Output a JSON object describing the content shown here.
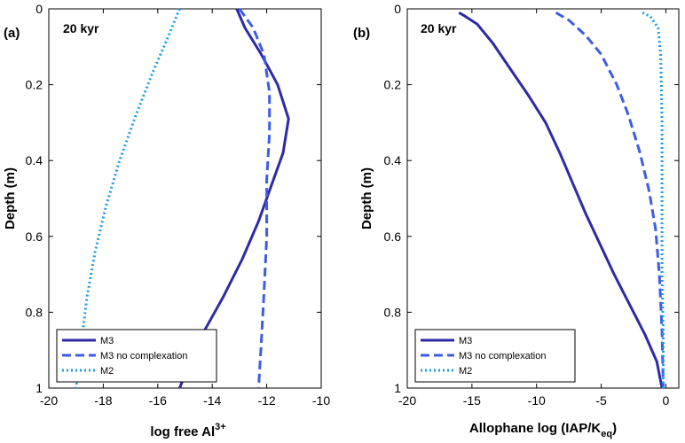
{
  "chart_data": [
    {
      "type": "line",
      "panel_label": "(a)",
      "annotation": "20 kyr",
      "xlabel_main": "log free Al",
      "xlabel_sup": "3+",
      "ylabel": "Depth (m)",
      "xlim": [
        -20,
        -10
      ],
      "ylim": [
        0,
        1
      ],
      "y_reversed": true,
      "xticks": [
        "-20",
        "-18",
        "-16",
        "-14",
        "-12",
        "-10"
      ],
      "yticks": [
        "0",
        "0.2",
        "0.4",
        "0.6",
        "0.8",
        "1"
      ],
      "legend_position": "bottom-left",
      "series": [
        {
          "name": "M3",
          "style": "solid",
          "color": "#2e2aa6",
          "points": [
            [
              -13.1,
              0.0
            ],
            [
              -12.8,
              0.05
            ],
            [
              -12.2,
              0.12
            ],
            [
              -11.6,
              0.2
            ],
            [
              -11.2,
              0.29
            ],
            [
              -11.4,
              0.38
            ],
            [
              -11.8,
              0.46
            ],
            [
              -12.3,
              0.56
            ],
            [
              -12.9,
              0.66
            ],
            [
              -13.6,
              0.76
            ],
            [
              -14.3,
              0.85
            ],
            [
              -14.8,
              0.93
            ],
            [
              -15.2,
              1.0
            ]
          ]
        },
        {
          "name": "M3 no complexation",
          "style": "dashed",
          "color": "#3d5de6",
          "points": [
            [
              -13.0,
              0.0
            ],
            [
              -12.5,
              0.05
            ],
            [
              -12.1,
              0.12
            ],
            [
              -11.9,
              0.22
            ],
            [
              -11.9,
              0.33
            ],
            [
              -12.0,
              0.45
            ],
            [
              -12.0,
              0.6
            ],
            [
              -12.1,
              0.75
            ],
            [
              -12.2,
              0.88
            ],
            [
              -12.3,
              1.0
            ]
          ]
        },
        {
          "name": "M2",
          "style": "dotted",
          "color": "#1f9ce6",
          "points": [
            [
              -15.2,
              0.0
            ],
            [
              -15.6,
              0.07
            ],
            [
              -16.2,
              0.17
            ],
            [
              -16.8,
              0.28
            ],
            [
              -17.4,
              0.4
            ],
            [
              -17.9,
              0.52
            ],
            [
              -18.3,
              0.64
            ],
            [
              -18.6,
              0.76
            ],
            [
              -18.8,
              0.88
            ],
            [
              -19.0,
              1.0
            ]
          ]
        }
      ]
    },
    {
      "type": "line",
      "panel_label": "(b)",
      "annotation": "20 kyr",
      "xlabel_main": "Allophane log (IAP/K",
      "xlabel_sub": "eq",
      "xlabel_close": ")",
      "ylabel": "Depth (m)",
      "xlim": [
        -20,
        1
      ],
      "ylim": [
        0,
        1
      ],
      "y_reversed": true,
      "xticks": [
        "-20",
        "-15",
        "-10",
        "-5",
        "0"
      ],
      "xtick_values": [
        -20,
        -15,
        -10,
        -5,
        0
      ],
      "yticks": [
        "0",
        "0.2",
        "0.4",
        "0.6",
        "0.8",
        "1"
      ],
      "legend_position": "bottom-left",
      "series": [
        {
          "name": "M3",
          "style": "solid",
          "color": "#2e2aa6",
          "points": [
            [
              -16.0,
              0.01
            ],
            [
              -15.5,
              0.02
            ],
            [
              -14.6,
              0.04
            ],
            [
              -13.4,
              0.09
            ],
            [
              -12.0,
              0.16
            ],
            [
              -10.6,
              0.23
            ],
            [
              -9.3,
              0.3
            ],
            [
              -8.2,
              0.38
            ],
            [
              -7.2,
              0.46
            ],
            [
              -6.2,
              0.54
            ],
            [
              -5.1,
              0.62
            ],
            [
              -4.0,
              0.7
            ],
            [
              -2.8,
              0.78
            ],
            [
              -1.6,
              0.86
            ],
            [
              -0.7,
              0.93
            ],
            [
              -0.3,
              1.0
            ]
          ]
        },
        {
          "name": "M3 no complexation",
          "style": "dashed",
          "color": "#3d5de6",
          "points": [
            [
              -8.5,
              0.01
            ],
            [
              -7.5,
              0.03
            ],
            [
              -6.2,
              0.07
            ],
            [
              -5.0,
              0.12
            ],
            [
              -3.8,
              0.2
            ],
            [
              -2.9,
              0.28
            ],
            [
              -2.0,
              0.38
            ],
            [
              -1.3,
              0.48
            ],
            [
              -0.8,
              0.58
            ],
            [
              -0.5,
              0.7
            ],
            [
              -0.3,
              0.85
            ],
            [
              -0.2,
              1.0
            ]
          ]
        },
        {
          "name": "M2",
          "style": "dotted",
          "color": "#1f9ce6",
          "points": [
            [
              -1.8,
              0.01
            ],
            [
              -1.2,
              0.02
            ],
            [
              -0.6,
              0.05
            ],
            [
              -0.4,
              0.12
            ],
            [
              -0.3,
              0.3
            ],
            [
              -0.3,
              0.5
            ],
            [
              -0.3,
              0.7
            ],
            [
              -0.2,
              0.85
            ],
            [
              -0.2,
              1.0
            ]
          ]
        }
      ]
    }
  ]
}
